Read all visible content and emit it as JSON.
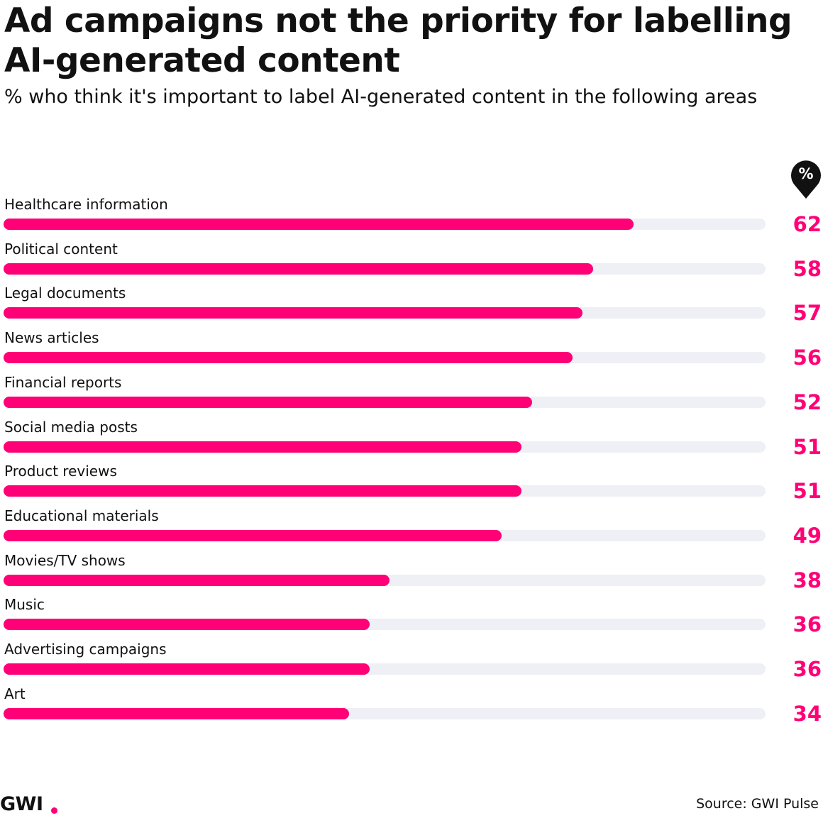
{
  "header": {
    "title": "Ad campaigns not the priority for labelling AI-generated content",
    "subtitle": "% who think it's important to label AI-generated content in the following areas",
    "unit_symbol": "%"
  },
  "chart_data": {
    "type": "bar",
    "orientation": "horizontal",
    "title": "Ad campaigns not the priority for labelling AI-generated content",
    "subtitle": "% who think it's important to label AI-generated content in the following areas",
    "categories": [
      "Healthcare information",
      "Political content",
      "Legal documents",
      "News articles",
      "Financial reports",
      "Social media posts",
      "Product reviews",
      "Educational materials",
      "Movies/TV shows",
      "Music",
      "Advertising campaigns",
      "Art"
    ],
    "values": [
      62,
      58,
      57,
      56,
      52,
      51,
      51,
      49,
      38,
      36,
      36,
      34
    ],
    "xlim": [
      0,
      75
    ],
    "grid": false,
    "colors": {
      "bar": "#ff0077",
      "track": "#eef0f5",
      "value_text": "#ff0077"
    }
  },
  "footer": {
    "logo": "GWI",
    "source": "Source: GWI Pulse"
  }
}
